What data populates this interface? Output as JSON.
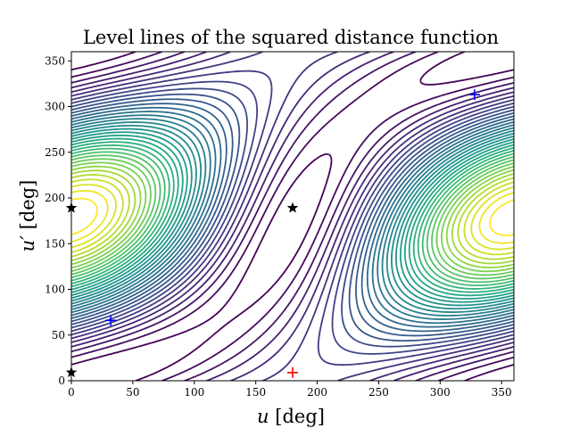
{
  "chart_data": {
    "type": "contour",
    "title": "Level lines of the squared distance function",
    "xlabel": "u [deg]",
    "xlabel_symbol": "u",
    "xlabel_unit": " [deg]",
    "ylabel": "u′ [deg]",
    "ylabel_symbol": "u′",
    "ylabel_unit": " [deg]",
    "xlim": [
      0,
      360
    ],
    "ylim": [
      0,
      360
    ],
    "xticks": [
      "0",
      "50",
      "100",
      "150",
      "200",
      "250",
      "300",
      "350"
    ],
    "yticks": [
      "0",
      "50",
      "100",
      "150",
      "200",
      "250",
      "300",
      "350"
    ],
    "grid": false,
    "colormap": "viridis",
    "contour_levels": 36,
    "saddle_markers": {
      "marker": "star",
      "color": "#000000",
      "points": [
        [
          0,
          9
        ],
        [
          0,
          189
        ],
        [
          180,
          189
        ]
      ]
    },
    "minimum_markers": {
      "marker": "plus",
      "color": "#0000ff",
      "points": [
        [
          32,
          66
        ],
        [
          328,
          313
        ]
      ]
    },
    "maximum_markers": {
      "marker": "plus",
      "color": "#ff0000",
      "points": [
        [
          180,
          9
        ]
      ]
    }
  }
}
